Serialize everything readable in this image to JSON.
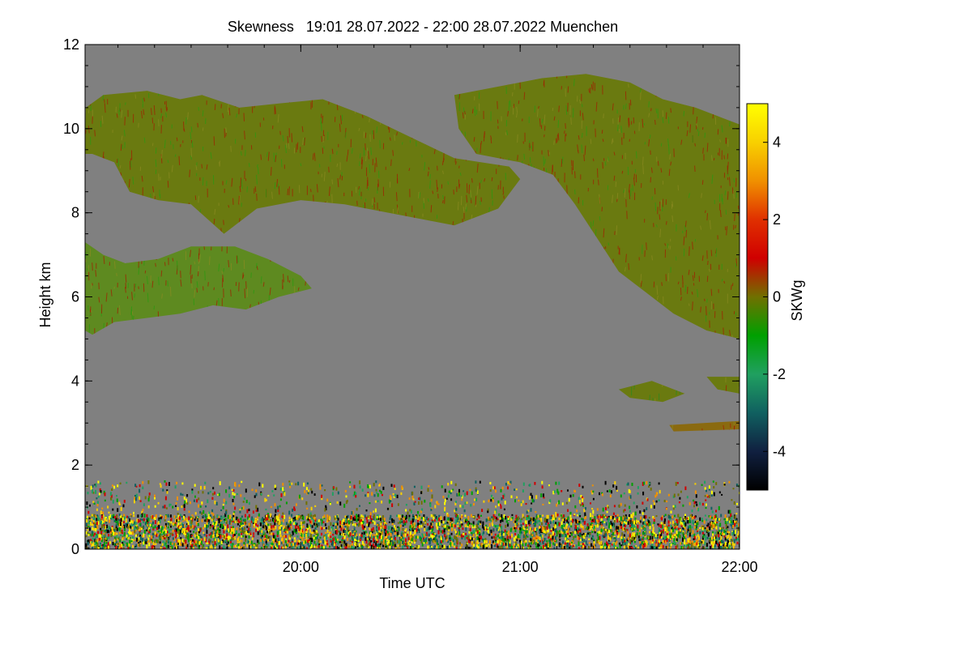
{
  "chart_data": {
    "type": "heatmap",
    "title": "Skewness   19:01 28.07.2022 - 22:00 28.07.2022 Muenchen",
    "xlabel": "Time UTC",
    "ylabel": "Height km",
    "x_range_hours": [
      19.0167,
      22.0
    ],
    "x_ticks": [
      {
        "value": 20.0,
        "label": "20:00"
      },
      {
        "value": 21.0,
        "label": "21:00"
      },
      {
        "value": 22.0,
        "label": "22:00"
      }
    ],
    "x_minor_step_hours": 0.1667,
    "y_range_km": [
      0,
      12
    ],
    "y_ticks": [
      {
        "value": 0,
        "label": "0"
      },
      {
        "value": 2,
        "label": "2"
      },
      {
        "value": 4,
        "label": "4"
      },
      {
        "value": 6,
        "label": "6"
      },
      {
        "value": 8,
        "label": "8"
      },
      {
        "value": 10,
        "label": "10"
      },
      {
        "value": 12,
        "label": "12"
      }
    ],
    "y_minor_step_km": 0.5,
    "background_color": "#808080",
    "colorbar": {
      "label": "SKWg",
      "range": [
        -5,
        5
      ],
      "ticks": [
        {
          "value": 4,
          "label": "4"
        },
        {
          "value": 2,
          "label": "2"
        },
        {
          "value": 0,
          "label": "0"
        },
        {
          "value": -2,
          "label": "-2"
        },
        {
          "value": -4,
          "label": "-4"
        }
      ],
      "stops": [
        {
          "value": -5,
          "color": "#000000"
        },
        {
          "value": -4,
          "color": "#102040"
        },
        {
          "value": -3,
          "color": "#106060"
        },
        {
          "value": -2,
          "color": "#20a060"
        },
        {
          "value": -1,
          "color": "#00a000"
        },
        {
          "value": 0,
          "color": "#707000"
        },
        {
          "value": 1,
          "color": "#d00000"
        },
        {
          "value": 2,
          "color": "#e03000"
        },
        {
          "value": 3,
          "color": "#f09000"
        },
        {
          "value": 4,
          "color": "#f8d000"
        },
        {
          "value": 5,
          "color": "#ffff00"
        }
      ]
    },
    "regions": [
      {
        "name": "upper-cloud-west",
        "color": "#6a7a10",
        "streak_color": "#a02000",
        "outline": [
          [
            19.0167,
            9.4
          ],
          [
            19.02,
            10.5
          ],
          [
            19.1,
            10.8
          ],
          [
            19.3,
            10.9
          ],
          [
            19.45,
            10.7
          ],
          [
            19.55,
            10.8
          ],
          [
            19.72,
            10.5
          ],
          [
            19.9,
            10.6
          ],
          [
            20.1,
            10.7
          ],
          [
            20.3,
            10.3
          ],
          [
            20.5,
            9.8
          ],
          [
            20.7,
            9.3
          ],
          [
            20.95,
            9.1
          ],
          [
            21.0,
            8.8
          ],
          [
            20.9,
            8.1
          ],
          [
            20.7,
            7.7
          ],
          [
            20.5,
            7.9
          ],
          [
            20.2,
            8.2
          ],
          [
            20.0,
            8.3
          ],
          [
            19.8,
            8.1
          ],
          [
            19.65,
            7.5
          ],
          [
            19.5,
            8.2
          ],
          [
            19.35,
            8.3
          ],
          [
            19.22,
            8.5
          ],
          [
            19.15,
            9.2
          ],
          [
            19.05,
            9.4
          ]
        ]
      },
      {
        "name": "upper-cloud-east",
        "color": "#6a7a10",
        "streak_color": "#a02000",
        "outline": [
          [
            20.7,
            10.8
          ],
          [
            20.9,
            11.0
          ],
          [
            21.1,
            11.2
          ],
          [
            21.3,
            11.3
          ],
          [
            21.5,
            11.1
          ],
          [
            21.65,
            10.7
          ],
          [
            21.8,
            10.5
          ],
          [
            21.9,
            10.3
          ],
          [
            22.0,
            10.1
          ],
          [
            22.0,
            5.0
          ],
          [
            21.85,
            5.2
          ],
          [
            21.7,
            5.6
          ],
          [
            21.6,
            6.0
          ],
          [
            21.45,
            6.6
          ],
          [
            21.35,
            7.4
          ],
          [
            21.25,
            8.2
          ],
          [
            21.15,
            8.9
          ],
          [
            21.0,
            9.2
          ],
          [
            20.8,
            9.4
          ],
          [
            20.72,
            10.0
          ]
        ]
      },
      {
        "name": "mid-cloud-west",
        "color": "#5e8a20",
        "streak_color": "#a02000",
        "outline": [
          [
            19.0167,
            5.2
          ],
          [
            19.0167,
            7.3
          ],
          [
            19.1,
            7.0
          ],
          [
            19.2,
            6.8
          ],
          [
            19.35,
            6.9
          ],
          [
            19.5,
            7.2
          ],
          [
            19.7,
            7.2
          ],
          [
            19.85,
            6.9
          ],
          [
            20.0,
            6.5
          ],
          [
            20.05,
            6.2
          ],
          [
            19.9,
            6.0
          ],
          [
            19.75,
            5.7
          ],
          [
            19.6,
            5.8
          ],
          [
            19.45,
            5.6
          ],
          [
            19.3,
            5.5
          ],
          [
            19.15,
            5.4
          ],
          [
            19.05,
            5.1
          ]
        ]
      },
      {
        "name": "high-cirrus-band-4km",
        "color": "#6a7a10",
        "streak_color": "#2a8a20",
        "outline": [
          [
            21.45,
            3.8
          ],
          [
            21.6,
            4.0
          ],
          [
            21.75,
            3.7
          ],
          [
            21.65,
            3.5
          ],
          [
            21.5,
            3.6
          ]
        ]
      },
      {
        "name": "patch-4km-east",
        "color": "#6a7a10",
        "streak_color": "#a02000",
        "outline": [
          [
            21.85,
            4.1
          ],
          [
            22.0,
            4.1
          ],
          [
            22.0,
            3.7
          ],
          [
            21.9,
            3.8
          ]
        ]
      },
      {
        "name": "thin-layer-3km",
        "color": "#8a6a10",
        "streak_color": "#a02000",
        "outline": [
          [
            21.68,
            2.95
          ],
          [
            22.0,
            3.05
          ],
          [
            22.0,
            2.85
          ],
          [
            21.7,
            2.8
          ]
        ]
      }
    ],
    "boundary_layer": {
      "top_km": 1.6,
      "dense_top_km": 0.8,
      "colors": [
        "#ffff00",
        "#f8d000",
        "#f09000",
        "#d00000",
        "#00a000",
        "#20a060",
        "#106060",
        "#000000",
        "#707000"
      ]
    }
  }
}
